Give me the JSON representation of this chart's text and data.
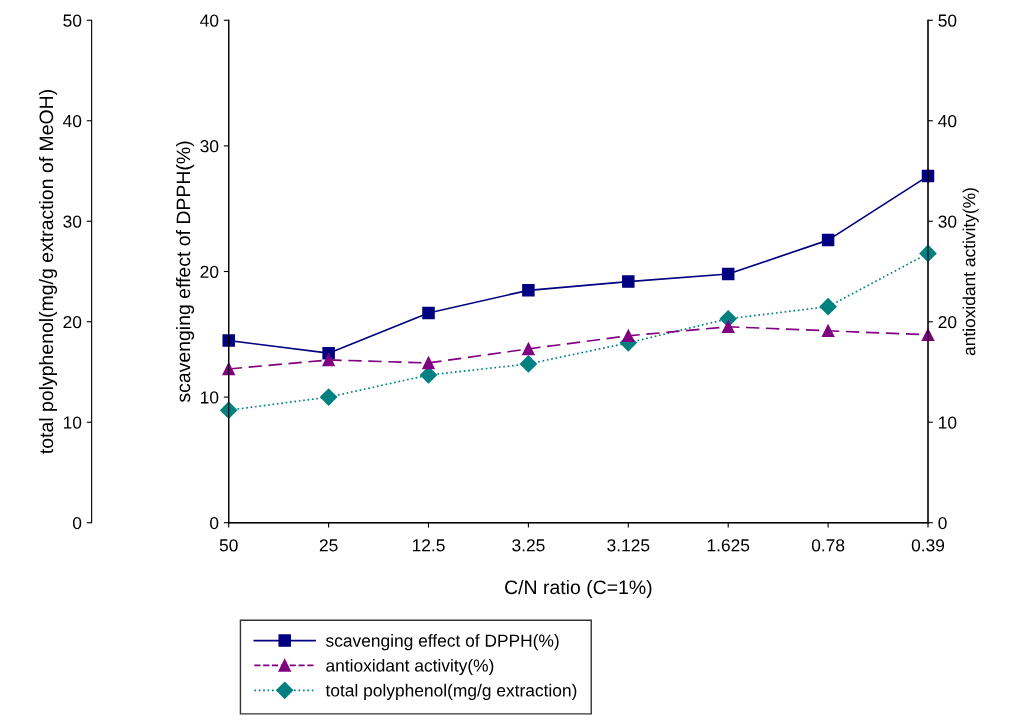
{
  "chart_data": {
    "type": "line",
    "xlabel": "C/N ratio (C=1%)",
    "ylabel": "scavenging effect of DPPH(%)",
    "y2label": "antioxidant activity(%)",
    "y3label": "total polyphenol(mg/g extraction of MeOH)",
    "categories": [
      "50",
      "25",
      "12.5",
      "3.25",
      "3.125",
      "1.625",
      "0.78",
      "0.39"
    ],
    "ylim": [
      0,
      40
    ],
    "yticks": [
      0,
      10,
      20,
      30,
      40
    ],
    "y2lim": [
      0,
      50
    ],
    "y2ticks": [
      0,
      10,
      20,
      30,
      40,
      50
    ],
    "y3lim": [
      0,
      50
    ],
    "y3ticks": [
      0,
      10,
      20,
      30,
      40,
      50
    ],
    "grid": false,
    "legend": "bottom",
    "series": [
      {
        "name": "scavenging effect of DPPH(%)",
        "color": "#000080",
        "marker": "square",
        "line_style": "solid",
        "values": [
          14.5,
          13.5,
          16.7,
          18.5,
          19.2,
          19.8,
          22.5,
          27.6
        ]
      },
      {
        "name": "antioxidant activity(%)",
        "color": "#800080",
        "marker": "triangle",
        "line_style": "dashed",
        "axis": "y2",
        "values": [
          15.3,
          16.2,
          15.9,
          17.3,
          18.6,
          19.5,
          19.1,
          18.7
        ]
      },
      {
        "name": "total polyphenol(mg/g extraction)",
        "color": "#008080",
        "marker": "diamond",
        "line_style": "dotted",
        "axis": "y3",
        "values": [
          11.2,
          12.5,
          14.7,
          15.8,
          17.9,
          20.3,
          21.5,
          26.8
        ]
      }
    ]
  }
}
